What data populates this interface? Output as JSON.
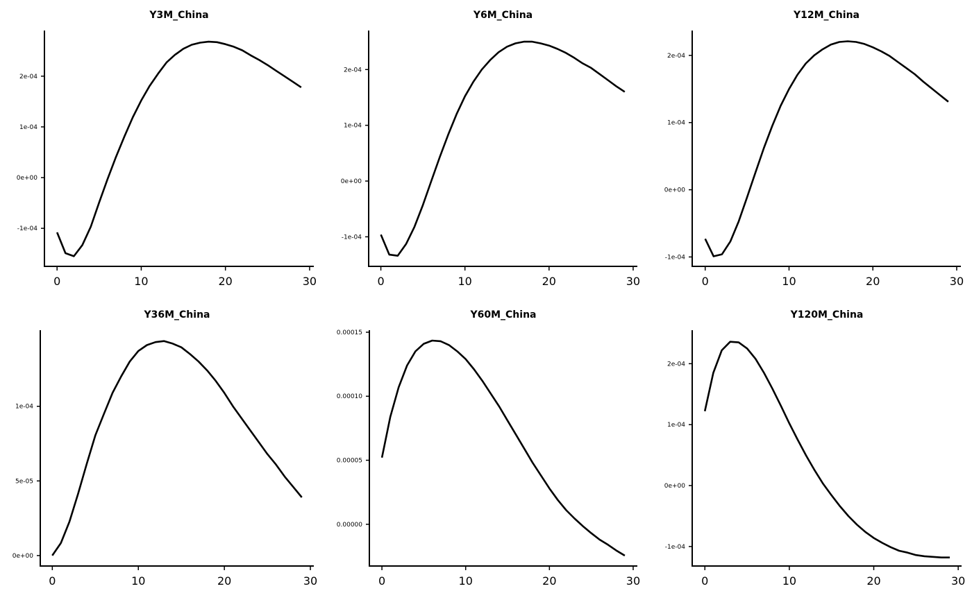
{
  "chart_data": [
    {
      "type": "line",
      "title": "Y3M_China",
      "xlabel": "",
      "ylabel": "",
      "xlim": [
        -1.5,
        30.5
      ],
      "ylim": [
        -0.000175,
        0.00029
      ],
      "xticks": [
        0,
        10,
        20,
        30
      ],
      "xtick_labels": [
        "0",
        "10",
        "20",
        "30"
      ],
      "yticks": [
        -0.0001,
        0,
        0.0001,
        0.0002
      ],
      "ytick_labels": [
        "-1e-04",
        "0e+00",
        "1e-04",
        "2e-04"
      ],
      "x": [
        0,
        1,
        2,
        3,
        4,
        5,
        6,
        7,
        8,
        9,
        10,
        11,
        12,
        13,
        14,
        15,
        16,
        17,
        18,
        19,
        20,
        21,
        22,
        23,
        24,
        25,
        26,
        27,
        28,
        29
      ],
      "y": [
        -0.000108,
        -0.000149,
        -0.000155,
        -0.000133,
        -9.7e-05,
        -4.9e-05,
        -3e-06,
        4.1e-05,
        8.1e-05,
        0.000119,
        0.000152,
        0.000181,
        0.000205,
        0.000227,
        0.000242,
        0.000254,
        0.000262,
        0.000266,
        0.000268,
        0.000267,
        0.000263,
        0.000258,
        0.000251,
        0.000241,
        0.000232,
        0.000222,
        0.000211,
        0.0002,
        0.000189,
        0.000178
      ]
    },
    {
      "type": "line",
      "title": "Y6M_China",
      "xlabel": "",
      "ylabel": "",
      "xlim": [
        -1.45,
        30.5
      ],
      "ylim": [
        -0.000153,
        0.00027
      ],
      "xticks": [
        0,
        10,
        20,
        30
      ],
      "xtick_labels": [
        "0",
        "10",
        "20",
        "30"
      ],
      "yticks": [
        -0.0001,
        0,
        0.0001,
        0.0002
      ],
      "ytick_labels": [
        "-1e-04",
        "0e+00",
        "1e-04",
        "2e-04"
      ],
      "x": [
        0,
        1,
        2,
        3,
        4,
        5,
        6,
        7,
        8,
        9,
        10,
        11,
        12,
        13,
        14,
        15,
        16,
        17,
        18,
        19,
        20,
        21,
        22,
        23,
        24,
        25,
        26,
        27,
        28,
        29
      ],
      "y": [
        -9.6e-05,
        -0.000132,
        -0.000134,
        -0.000113,
        -8.2e-05,
        -4.3e-05,
        0,
        4.3e-05,
        8.3e-05,
        0.00012,
        0.000152,
        0.000178,
        0.0002,
        0.000217,
        0.000231,
        0.000241,
        0.000247,
        0.00025,
        0.00025,
        0.000247,
        0.000243,
        0.000237,
        0.00023,
        0.000221,
        0.000211,
        0.000203,
        0.000192,
        0.000181,
        0.00017,
        0.00016
      ]
    },
    {
      "type": "line",
      "title": "Y12M_China",
      "xlabel": "",
      "ylabel": "",
      "xlim": [
        -1.55,
        30.5
      ],
      "ylim": [
        -0.000114,
        0.000237
      ],
      "xticks": [
        0,
        10,
        20,
        30
      ],
      "xtick_labels": [
        "0",
        "10",
        "20",
        "30"
      ],
      "yticks": [
        -0.0001,
        0,
        0.0001,
        0.0002
      ],
      "ytick_labels": [
        "-1e-04",
        "0e+00",
        "1e-04",
        "2e-04"
      ],
      "x": [
        0,
        1,
        2,
        3,
        4,
        5,
        6,
        7,
        8,
        9,
        10,
        11,
        12,
        13,
        14,
        15,
        16,
        17,
        18,
        19,
        20,
        21,
        22,
        23,
        24,
        25,
        26,
        27,
        28,
        29
      ],
      "y": [
        -7.3e-05,
        -9.9e-05,
        -9.6e-05,
        -7.7e-05,
        -4.7e-05,
        -1.1e-05,
        2.6e-05,
        6.2e-05,
        9.5e-05,
        0.000125,
        0.00015,
        0.000171,
        0.000188,
        0.0002,
        0.000209,
        0.000216,
        0.00022,
        0.000221,
        0.00022,
        0.000217,
        0.000212,
        0.000206,
        0.000199,
        0.00019,
        0.000181,
        0.000172,
        0.000161,
        0.000151,
        0.000141,
        0.000131
      ]
    },
    {
      "type": "line",
      "title": "Y36M_China",
      "xlabel": "",
      "ylabel": "",
      "xlim": [
        -1.4,
        30.4
      ],
      "ylim": [
        -7e-06,
        0.000151
      ],
      "xticks": [
        0,
        10,
        20,
        30
      ],
      "xtick_labels": [
        "0",
        "10",
        "20",
        "30"
      ],
      "yticks": [
        0,
        5e-05,
        0.0001
      ],
      "ytick_labels": [
        "0e+00",
        "5e-05",
        "1e-04"
      ],
      "x": [
        0,
        1,
        2,
        3,
        4,
        5,
        6,
        7,
        8,
        9,
        10,
        11,
        12,
        13,
        14,
        15,
        16,
        17,
        18,
        19,
        20,
        21,
        22,
        23,
        24,
        25,
        26,
        27,
        28,
        29
      ],
      "y": [
        0,
        8.4e-06,
        2.28e-05,
        4.14e-05,
        6.14e-05,
        8.05e-05,
        9.49e-05,
        0.000109,
        0.00012,
        0.00013,
        0.000137,
        0.000141,
        0.000143,
        0.0001437,
        0.000142,
        0.0001395,
        0.000135,
        0.00013,
        0.000124,
        0.000117,
        0.000109,
        0.0001,
        9.2e-05,
        8.4e-05,
        7.6e-05,
        6.8e-05,
        6.1e-05,
        5.3e-05,
        4.6e-05,
        3.9e-05
      ]
    },
    {
      "type": "line",
      "title": "Y60M_China",
      "xlabel": "",
      "ylabel": "",
      "xlim": [
        -1.5,
        30.5
      ],
      "ylim": [
        -3.26e-05,
        0.0001516
      ],
      "xticks": [
        0,
        10,
        20,
        30
      ],
      "xtick_labels": [
        "0",
        "10",
        "20",
        "30"
      ],
      "yticks": [
        0,
        5e-05,
        0.0001,
        0.00015
      ],
      "ytick_labels": [
        "0.00000",
        "0.00005",
        "0.00010",
        "0.00015"
      ],
      "x": [
        0,
        1,
        2,
        3,
        4,
        5,
        6,
        7,
        8,
        9,
        10,
        11,
        12,
        13,
        14,
        15,
        16,
        17,
        18,
        19,
        20,
        21,
        22,
        23,
        24,
        25,
        26,
        27,
        28,
        29
      ],
      "y": [
        5.2e-05,
        8.4e-05,
        0.000107,
        0.000124,
        0.000135,
        0.000141,
        0.0001435,
        0.000143,
        0.00014,
        0.000135,
        0.000129,
        0.000121,
        0.000112,
        0.000102,
        9.2e-05,
        8.1e-05,
        7e-05,
        5.9e-05,
        4.8e-05,
        3.8e-05,
        2.8e-05,
        1.9e-05,
        1.1e-05,
        4.5e-06,
        -1.5e-06,
        -7e-06,
        -1.2e-05,
        -1.6e-05,
        -2.05e-05,
        -2.45e-05
      ]
    },
    {
      "type": "line",
      "title": "Y120M_China",
      "xlabel": "",
      "ylabel": "",
      "xlim": [
        -1.5,
        30.4
      ],
      "ylim": [
        -0.000132,
        0.000255
      ],
      "xticks": [
        0,
        10,
        20,
        30
      ],
      "xtick_labels": [
        "0",
        "10",
        "20",
        "30"
      ],
      "yticks": [
        -0.0001,
        0,
        0.0001,
        0.0002
      ],
      "ytick_labels": [
        "-1e-04",
        "0e+00",
        "1e-04",
        "2e-04"
      ],
      "x": [
        0,
        1,
        2,
        3,
        4,
        5,
        6,
        7,
        8,
        9,
        10,
        11,
        12,
        13,
        14,
        15,
        16,
        17,
        18,
        19,
        20,
        21,
        22,
        23,
        24,
        25,
        26,
        27,
        28,
        29
      ],
      "y": [
        0.000122,
        0.000185,
        0.000222,
        0.000236,
        0.000235,
        0.000225,
        0.000208,
        0.000185,
        0.000159,
        0.000131,
        0.000102,
        7.5e-05,
        4.9e-05,
        2.5e-05,
        3e-06,
        -1.6e-05,
        -3.4e-05,
        -5e-05,
        -6.4e-05,
        -7.6e-05,
        -8.6e-05,
        -9.4e-05,
        -0.000101,
        -0.000107,
        -0.00011,
        -0.000114,
        -0.000116,
        -0.000117,
        -0.000118,
        -0.000118
      ]
    }
  ]
}
